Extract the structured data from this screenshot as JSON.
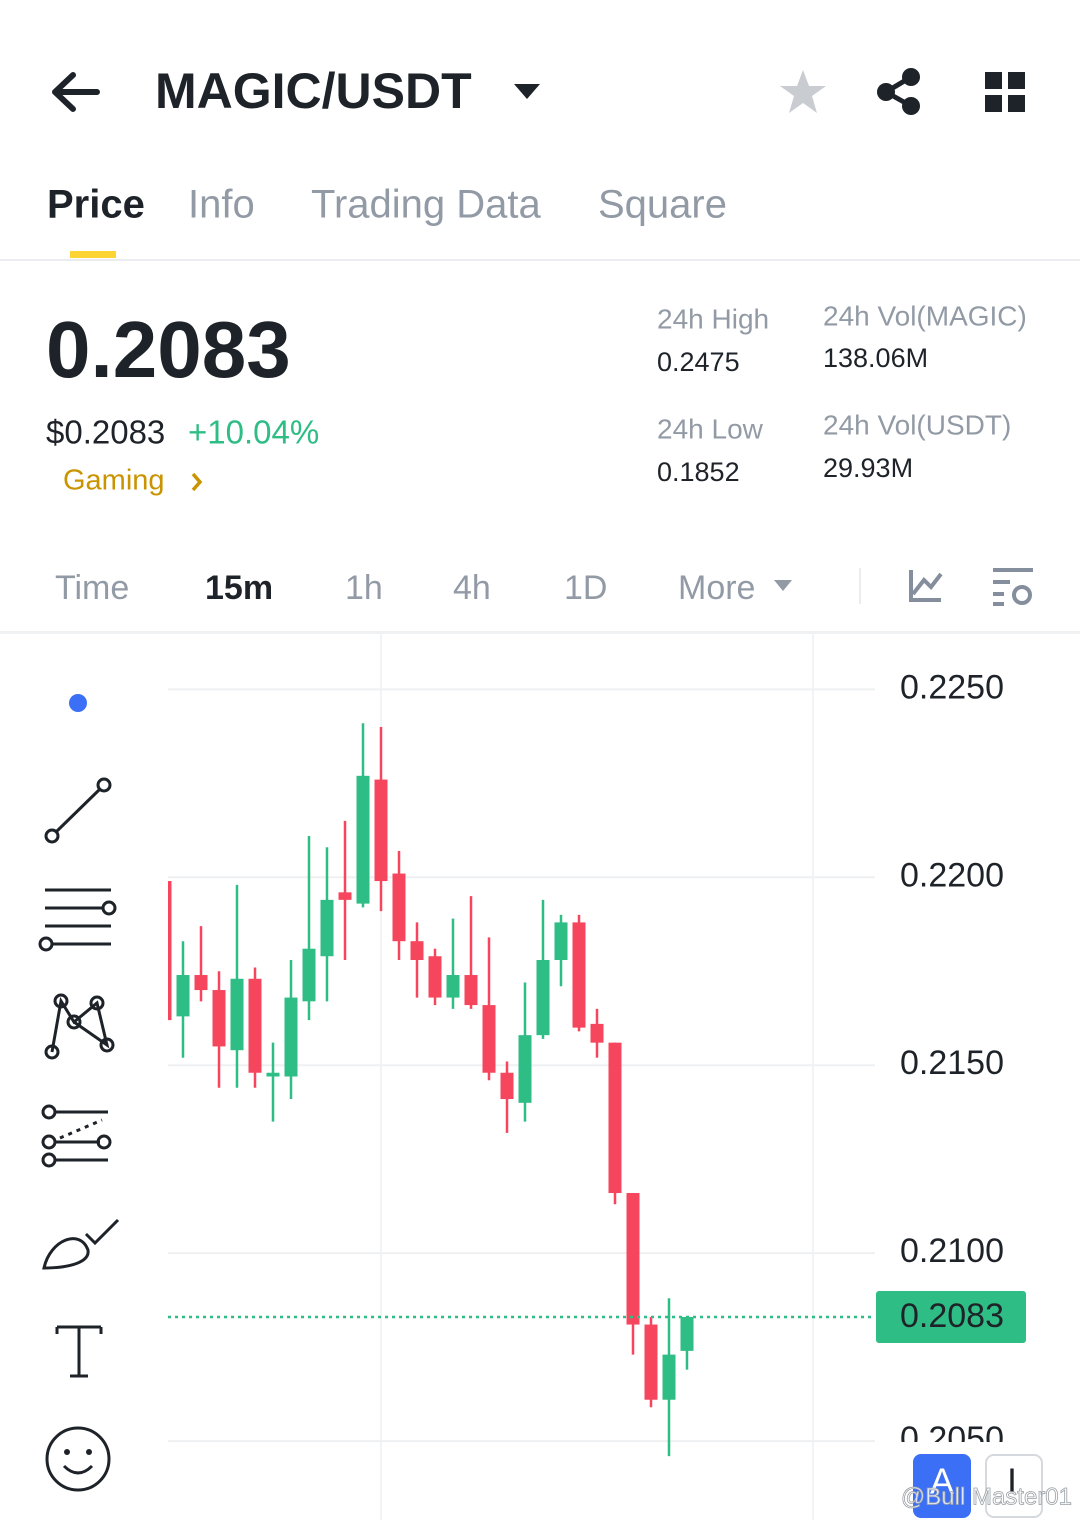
{
  "header": {
    "pair": "MAGIC/USDT"
  },
  "tabs": [
    "Price",
    "Info",
    "Trading Data",
    "Square"
  ],
  "ticker": {
    "price": "0.2083",
    "usd_price": "$0.2083",
    "change": "+10.04%",
    "tag": "Gaming",
    "stats": [
      {
        "label": "24h High",
        "value": "0.2475"
      },
      {
        "label": "24h Vol(MAGIC)",
        "value": "138.06M"
      },
      {
        "label": "24h Low",
        "value": "0.1852"
      },
      {
        "label": "24h Vol(USDT)",
        "value": "29.93M"
      }
    ]
  },
  "intervals": [
    "Time",
    "15m",
    "1h",
    "4h",
    "1D",
    "More"
  ],
  "chart_data": {
    "type": "candlestick",
    "up_color": "#2ebd85",
    "down_color": "#f6465d",
    "ylim": [
      0.2029,
      0.2265
    ],
    "yticks": [
      {
        "value": 0.225,
        "label": "0.2250"
      },
      {
        "value": 0.22,
        "label": "0.2200"
      },
      {
        "value": 0.215,
        "label": "0.2150"
      },
      {
        "value": 0.21,
        "label": "0.2100"
      },
      {
        "value": 0.205,
        "label": "0.2050"
      }
    ],
    "grid": true,
    "last_price": {
      "value": 0.2083,
      "label": "0.2083"
    },
    "candles": [
      {
        "open": 0.2199,
        "high": 0.2199,
        "low": 0.2162,
        "close": 0.2162
      },
      {
        "open": 0.2163,
        "high": 0.2183,
        "low": 0.2152,
        "close": 0.2174
      },
      {
        "open": 0.2174,
        "high": 0.2187,
        "low": 0.2167,
        "close": 0.217
      },
      {
        "open": 0.217,
        "high": 0.2175,
        "low": 0.2144,
        "close": 0.2155
      },
      {
        "open": 0.2154,
        "high": 0.2198,
        "low": 0.2144,
        "close": 0.2173
      },
      {
        "open": 0.2173,
        "high": 0.2176,
        "low": 0.2144,
        "close": 0.2148
      },
      {
        "open": 0.2147,
        "high": 0.2156,
        "low": 0.2135,
        "close": 0.2148
      },
      {
        "open": 0.2147,
        "high": 0.2178,
        "low": 0.2141,
        "close": 0.2168
      },
      {
        "open": 0.2167,
        "high": 0.2211,
        "low": 0.2162,
        "close": 0.2181
      },
      {
        "open": 0.2179,
        "high": 0.2208,
        "low": 0.2167,
        "close": 0.2194
      },
      {
        "open": 0.2196,
        "high": 0.2215,
        "low": 0.2178,
        "close": 0.2194
      },
      {
        "open": 0.2193,
        "high": 0.2241,
        "low": 0.2192,
        "close": 0.2227
      },
      {
        "open": 0.2226,
        "high": 0.224,
        "low": 0.2191,
        "close": 0.2199
      },
      {
        "open": 0.2201,
        "high": 0.2207,
        "low": 0.2178,
        "close": 0.2183
      },
      {
        "open": 0.2183,
        "high": 0.2188,
        "low": 0.2168,
        "close": 0.2178
      },
      {
        "open": 0.2179,
        "high": 0.2181,
        "low": 0.2166,
        "close": 0.2168
      },
      {
        "open": 0.2168,
        "high": 0.2189,
        "low": 0.2165,
        "close": 0.2174
      },
      {
        "open": 0.2174,
        "high": 0.2195,
        "low": 0.2165,
        "close": 0.2166
      },
      {
        "open": 0.2166,
        "high": 0.2184,
        "low": 0.2146,
        "close": 0.2148
      },
      {
        "open": 0.2148,
        "high": 0.2151,
        "low": 0.2132,
        "close": 0.2141
      },
      {
        "open": 0.214,
        "high": 0.2172,
        "low": 0.2135,
        "close": 0.2158
      },
      {
        "open": 0.2158,
        "high": 0.2194,
        "low": 0.2157,
        "close": 0.2178
      },
      {
        "open": 0.2178,
        "high": 0.219,
        "low": 0.2171,
        "close": 0.2188
      },
      {
        "open": 0.2188,
        "high": 0.219,
        "low": 0.2159,
        "close": 0.216
      },
      {
        "open": 0.2161,
        "high": 0.2165,
        "low": 0.2152,
        "close": 0.2156
      },
      {
        "open": 0.2156,
        "high": 0.2156,
        "low": 0.2113,
        "close": 0.2116
      },
      {
        "open": 0.2116,
        "high": 0.2116,
        "low": 0.2073,
        "close": 0.2081
      },
      {
        "open": 0.2081,
        "high": 0.2083,
        "low": 0.2059,
        "close": 0.2061
      },
      {
        "open": 0.2061,
        "high": 0.2088,
        "low": 0.2046,
        "close": 0.2073
      },
      {
        "open": 0.2074,
        "high": 0.2083,
        "low": 0.2069,
        "close": 0.2083
      }
    ]
  },
  "overlay_buttons": [
    "A",
    "I"
  ],
  "watermark": "@Bull Master01"
}
